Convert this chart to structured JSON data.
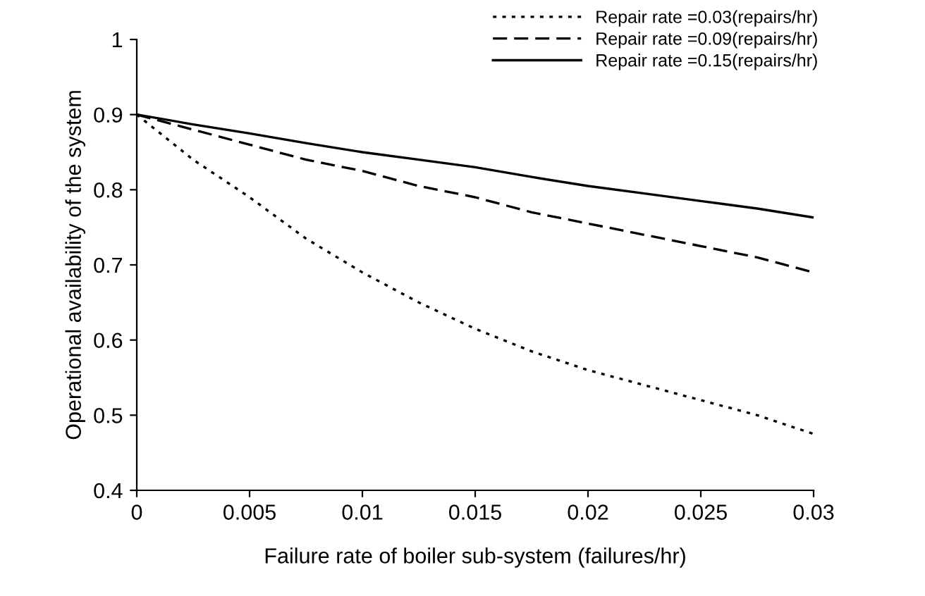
{
  "chart_data": {
    "type": "line",
    "xlabel": "Failure rate of boiler sub-system (failures/hr)",
    "ylabel": "Operational availability of the system",
    "x": [
      0,
      0.0025,
      0.005,
      0.0075,
      0.01,
      0.0125,
      0.015,
      0.0175,
      0.02,
      0.0225,
      0.025,
      0.0275,
      0.03
    ],
    "series": [
      {
        "name": "Repair rate =0.03(repairs/hr)",
        "color": "#000000",
        "line_style": "dotted",
        "values": [
          0.9,
          0.84,
          0.79,
          0.735,
          0.69,
          0.65,
          0.615,
          0.585,
          0.56,
          0.54,
          0.52,
          0.5,
          0.475
        ]
      },
      {
        "name": "Repair rate =0.09(repairs/hr)",
        "color": "#000000",
        "line_style": "dashed",
        "values": [
          0.9,
          0.88,
          0.86,
          0.84,
          0.825,
          0.805,
          0.79,
          0.77,
          0.755,
          0.74,
          0.725,
          0.71,
          0.69
        ]
      },
      {
        "name": "Repair rate =0.15(repairs/hr)",
        "color": "#000000",
        "line_style": "solid",
        "values": [
          0.9,
          0.887,
          0.875,
          0.862,
          0.85,
          0.84,
          0.83,
          0.817,
          0.805,
          0.795,
          0.785,
          0.775,
          0.763
        ]
      }
    ],
    "xlim": [
      0,
      0.03
    ],
    "xticks": [
      0,
      0.005,
      0.01,
      0.015,
      0.02,
      0.025,
      0.03
    ],
    "ylim": [
      0.4,
      1
    ],
    "yticks": [
      0.4,
      0.5,
      0.6,
      0.7,
      0.8,
      0.9,
      1
    ],
    "grid": false,
    "legend": "top right",
    "marker": "none"
  }
}
